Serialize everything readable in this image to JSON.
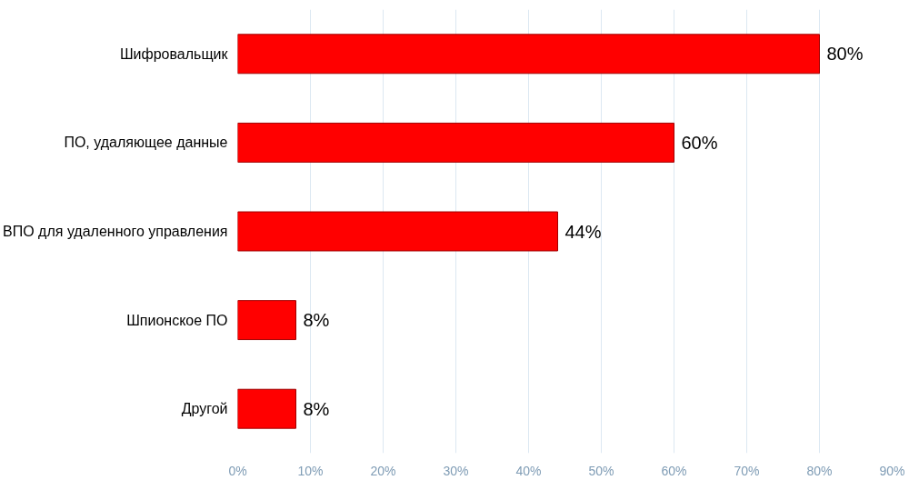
{
  "chart_data": {
    "type": "bar",
    "orientation": "horizontal",
    "categories": [
      "Шифровальщик",
      "ПО, удаляющее данные",
      "ВПО для удаленного управления",
      "Шпионское ПО",
      "Другой"
    ],
    "values": [
      80,
      60,
      44,
      8,
      8
    ],
    "color": "#ff0000",
    "value_labels": [
      "80%",
      "60%",
      "44%",
      "8%",
      "8%"
    ],
    "xlim": [
      0,
      90
    ],
    "xticks": [
      {
        "value": 0,
        "label": "0%"
      },
      {
        "value": 10,
        "label": "10%"
      },
      {
        "value": 20,
        "label": "20%"
      },
      {
        "value": 30,
        "label": "30%"
      },
      {
        "value": 40,
        "label": "40%"
      },
      {
        "value": 50,
        "label": "50%"
      },
      {
        "value": 60,
        "label": "60%"
      },
      {
        "value": 70,
        "label": "70%"
      },
      {
        "value": 80,
        "label": "80%"
      },
      {
        "value": 90,
        "label": "90%"
      }
    ],
    "grid": "x"
  }
}
